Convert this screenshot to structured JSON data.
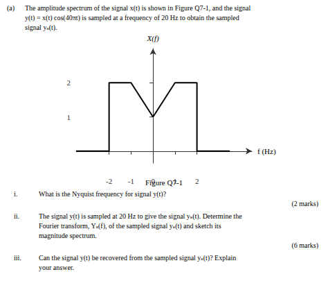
{
  "chart_data": {
    "type": "line",
    "title": "Figure Q7-1",
    "xlabel": "f (Hz)",
    "ylabel": "X(f)",
    "x": [
      -3.5,
      -2,
      -2,
      -1,
      0,
      1,
      2,
      2,
      3.5
    ],
    "values": [
      0,
      0,
      2,
      2,
      1,
      2,
      2,
      0,
      0
    ],
    "color": "#000000",
    "xlim": [
      -3.5,
      4.5
    ],
    "ylim": [
      -0.35,
      3.0
    ],
    "xticks": [
      -2,
      -1,
      0,
      1,
      2
    ],
    "yticks": [
      1,
      2
    ],
    "grid": false,
    "annotations": [
      "(a)",
      "The amplitude spectrum of the signal x(t) is shown in Figure Q7-1, and the signal",
      "y(t) = x(t) cos(40πt) is sampled at a frequency of 20 Hz to obtain the sampled",
      "signal yₛ(t).",
      "i.",
      "What is the Nyquist frequency for signal y(t)?",
      "(2 marks)",
      "ii.",
      "The signal y(t) is sampled at 20 Hz to give the signal yₛ(t). Determine the",
      "Fourier transform, Yₛ(f), of the sampled signal yₛ(t) and sketch its",
      "magnitude spectrum.",
      "(6 marks)",
      "iii.",
      "Can the signal y(t) be recovered from the sampled signal yₛ(t)? Explain",
      "your answer."
    ]
  }
}
